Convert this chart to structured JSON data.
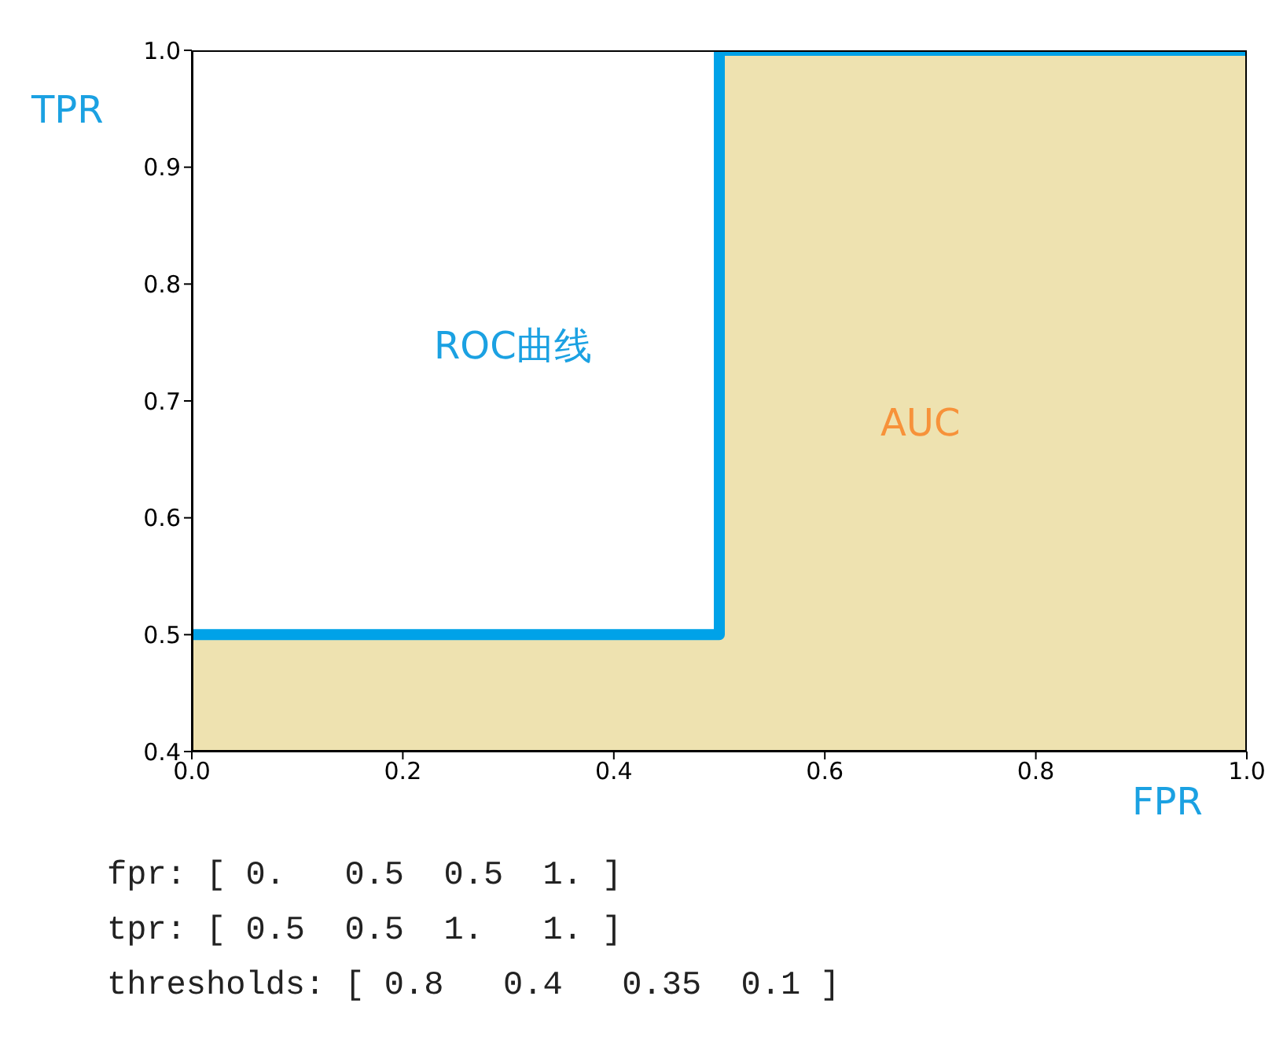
{
  "chart_data": {
    "type": "line",
    "xlabel": "FPR",
    "ylabel": "TPR",
    "x": [
      0,
      0.5,
      0.5,
      1
    ],
    "series": [
      {
        "type": "area",
        "color": "#eee2b0",
        "values": [
          0.5,
          0.5,
          1,
          1
        ]
      },
      {
        "color": "#00a2e8",
        "values": [
          0.5,
          0.5,
          1,
          1
        ]
      }
    ],
    "xlim": [
      0,
      1
    ],
    "ylim": [
      0.4,
      1
    ],
    "xticks": [
      {
        "value": 0,
        "label": "0.0"
      },
      {
        "value": 0.2,
        "label": "0.2"
      },
      {
        "value": 0.4,
        "label": "0.4"
      },
      {
        "value": 0.6,
        "label": "0.6"
      },
      {
        "value": 0.8,
        "label": "0.8"
      },
      {
        "value": 1,
        "label": "1.0"
      }
    ],
    "yticks": [
      {
        "value": 0.4,
        "label": "0.4"
      },
      {
        "value": 0.5,
        "label": "0.5"
      },
      {
        "value": 0.6,
        "label": "0.6"
      },
      {
        "value": 0.7,
        "label": "0.7"
      },
      {
        "value": 0.8,
        "label": "0.8"
      },
      {
        "value": 0.9,
        "label": "0.9"
      },
      {
        "value": 1,
        "label": "1.0"
      }
    ],
    "grid": false,
    "legend": false,
    "marker": "none",
    "line_style": "solid",
    "annotations": [
      "ROC曲线",
      "AUC",
      "fpr: [ 0.   0.5  0.5  1. ]",
      "tpr: [ 0.5  0.5  1.   1. ]",
      "thresholds: [ 0.8   0.4   0.35  0.1 ]"
    ]
  }
}
